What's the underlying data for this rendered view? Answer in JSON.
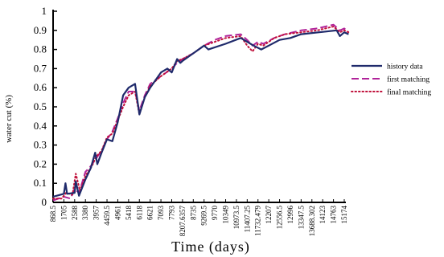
{
  "chart_data": {
    "type": "line",
    "xlabel": "Time (days)",
    "ylabel": "water cut (%)",
    "ylim": [
      0,
      1
    ],
    "yticks": [
      "0",
      "0.1",
      "0.2",
      "0.3",
      "0.4",
      "0.5",
      "0.6",
      "0.7",
      "0.8",
      "0.9",
      "1"
    ],
    "legend_position": "right",
    "categories": [
      "868.5",
      "1705",
      "2588",
      "3380",
      "3957",
      "4459.5",
      "4961",
      "5418",
      "6118",
      "6621",
      "7093",
      "7793",
      "8207.6357",
      "8735",
      "9269.5",
      "9770",
      "10349",
      "10973.5",
      "11407.25",
      "11732.479",
      "12207",
      "12556.5",
      "12996",
      "13347.5",
      "13688.302",
      "14123",
      "14763",
      "15174"
    ],
    "series": [
      {
        "name": "history data",
        "color": "#1f2a6b",
        "style": "solid",
        "points": [
          [
            0,
            0.03
          ],
          [
            1.0,
            0.045
          ],
          [
            1.15,
            0.1
          ],
          [
            1.3,
            0.045
          ],
          [
            2.0,
            0.05
          ],
          [
            2.1,
            0.11
          ],
          [
            2.4,
            0.035
          ],
          [
            3.0,
            0.12
          ],
          [
            3.5,
            0.18
          ],
          [
            3.9,
            0.26
          ],
          [
            4.1,
            0.2
          ],
          [
            4.5,
            0.26
          ],
          [
            5.0,
            0.33
          ],
          [
            5.5,
            0.32
          ],
          [
            6.0,
            0.42
          ],
          [
            6.5,
            0.56
          ],
          [
            7.0,
            0.6
          ],
          [
            7.6,
            0.62
          ],
          [
            8.0,
            0.46
          ],
          [
            8.5,
            0.55
          ],
          [
            9.0,
            0.6
          ],
          [
            10.0,
            0.68
          ],
          [
            10.6,
            0.7
          ],
          [
            11.0,
            0.68
          ],
          [
            11.5,
            0.75
          ],
          [
            11.8,
            0.73
          ],
          [
            12.0,
            0.74
          ],
          [
            13.0,
            0.78
          ],
          [
            14.0,
            0.82
          ],
          [
            14.4,
            0.8
          ],
          [
            16.0,
            0.83
          ],
          [
            17.4,
            0.86
          ],
          [
            18.0,
            0.84
          ],
          [
            18.6,
            0.82
          ],
          [
            19.3,
            0.8
          ],
          [
            20.0,
            0.82
          ],
          [
            21.0,
            0.85
          ],
          [
            22.0,
            0.86
          ],
          [
            23.0,
            0.88
          ],
          [
            26.3,
            0.9
          ],
          [
            26.6,
            0.87
          ],
          [
            27.0,
            0.89
          ],
          [
            27.4,
            0.88
          ]
        ]
      },
      {
        "name": "first matching",
        "color": "#b0239a",
        "style": "dashed",
        "points": [
          [
            0,
            0.01
          ],
          [
            1.0,
            0.03
          ],
          [
            1.6,
            0.02
          ],
          [
            2.0,
            0.07
          ],
          [
            2.4,
            0.05
          ],
          [
            3.0,
            0.16
          ],
          [
            3.5,
            0.19
          ],
          [
            4.0,
            0.23
          ],
          [
            4.5,
            0.27
          ],
          [
            5.0,
            0.33
          ],
          [
            5.5,
            0.37
          ],
          [
            6.0,
            0.44
          ],
          [
            6.5,
            0.52
          ],
          [
            7.0,
            0.58
          ],
          [
            7.6,
            0.58
          ],
          [
            8.0,
            0.48
          ],
          [
            8.5,
            0.56
          ],
          [
            9.0,
            0.62
          ],
          [
            10.0,
            0.66
          ],
          [
            11.0,
            0.7
          ],
          [
            11.5,
            0.73
          ],
          [
            12.0,
            0.75
          ],
          [
            13.0,
            0.78
          ],
          [
            14.0,
            0.82
          ],
          [
            15.0,
            0.85
          ],
          [
            16.0,
            0.87
          ],
          [
            17.4,
            0.88
          ],
          [
            18.0,
            0.85
          ],
          [
            18.5,
            0.82
          ],
          [
            19.0,
            0.84
          ],
          [
            19.5,
            0.83
          ],
          [
            20.5,
            0.86
          ],
          [
            21.5,
            0.88
          ],
          [
            23.0,
            0.9
          ],
          [
            24.5,
            0.91
          ],
          [
            26.0,
            0.93
          ],
          [
            26.6,
            0.9
          ],
          [
            27.0,
            0.91
          ],
          [
            27.4,
            0.89
          ]
        ]
      },
      {
        "name": "final matching",
        "color": "#c0103a",
        "style": "dotted",
        "points": [
          [
            0,
            0.02
          ],
          [
            0.8,
            0.02
          ],
          [
            1.2,
            0.05
          ],
          [
            1.8,
            0.04
          ],
          [
            2.1,
            0.15
          ],
          [
            2.5,
            0.06
          ],
          [
            3.0,
            0.14
          ],
          [
            3.6,
            0.19
          ],
          [
            4.0,
            0.24
          ],
          [
            4.5,
            0.27
          ],
          [
            5.0,
            0.34
          ],
          [
            5.5,
            0.36
          ],
          [
            6.0,
            0.43
          ],
          [
            6.5,
            0.5
          ],
          [
            7.0,
            0.56
          ],
          [
            7.6,
            0.58
          ],
          [
            8.0,
            0.46
          ],
          [
            8.5,
            0.55
          ],
          [
            9.0,
            0.61
          ],
          [
            10.0,
            0.66
          ],
          [
            11.0,
            0.7
          ],
          [
            11.5,
            0.74
          ],
          [
            12.0,
            0.75
          ],
          [
            13.0,
            0.78
          ],
          [
            14.0,
            0.82
          ],
          [
            15.0,
            0.84
          ],
          [
            16.0,
            0.86
          ],
          [
            17.4,
            0.87
          ],
          [
            18.0,
            0.82
          ],
          [
            18.5,
            0.79
          ],
          [
            19.0,
            0.83
          ],
          [
            19.5,
            0.82
          ],
          [
            20.5,
            0.86
          ],
          [
            21.5,
            0.88
          ],
          [
            23.0,
            0.89
          ],
          [
            24.5,
            0.9
          ],
          [
            26.0,
            0.92
          ],
          [
            26.6,
            0.89
          ],
          [
            27.0,
            0.9
          ],
          [
            27.4,
            0.89
          ]
        ]
      }
    ]
  }
}
